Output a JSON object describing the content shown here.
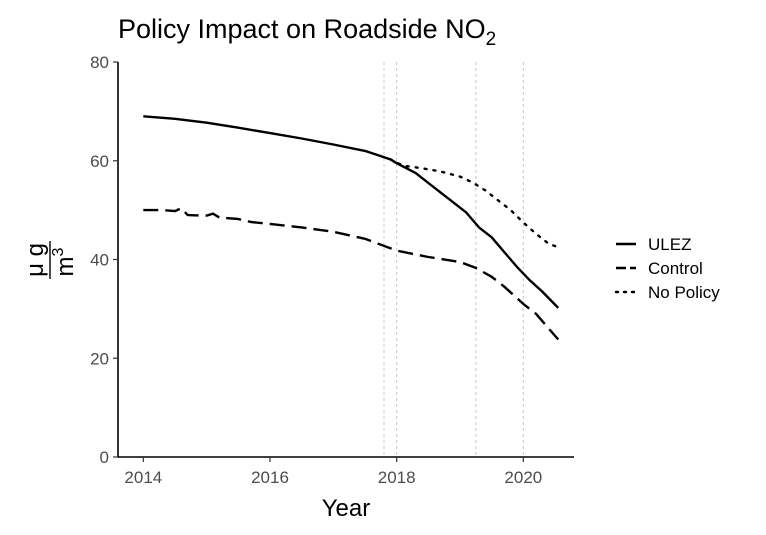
{
  "chart_data": {
    "type": "line",
    "title": "Policy Impact on Roadside NO",
    "title_subscript": "2",
    "xlabel": "Year",
    "ylabel": {
      "numerator": "μ g",
      "denominator": "m",
      "superscript": "3"
    },
    "xlim": [
      2013.6,
      2020.8
    ],
    "ylim": [
      0,
      80
    ],
    "xticks": [
      2014,
      2016,
      2018,
      2020
    ],
    "yticks": [
      0,
      20,
      40,
      60,
      80
    ],
    "grid": false,
    "legend_position": "right",
    "vlines": [
      2017.8,
      2018.0,
      2019.25,
      2020.0
    ],
    "series": [
      {
        "name": "ULEZ",
        "dash": "solid",
        "x": [
          2014.0,
          2014.5,
          2015.0,
          2015.5,
          2016.0,
          2016.5,
          2017.0,
          2017.5,
          2017.9,
          2018.0,
          2018.3,
          2018.6,
          2018.9,
          2019.1,
          2019.3,
          2019.5,
          2019.7,
          2019.9,
          2020.1,
          2020.3,
          2020.55
        ],
        "y": [
          69.0,
          68.5,
          67.7,
          66.7,
          65.6,
          64.5,
          63.3,
          62.0,
          60.3,
          59.5,
          57.5,
          54.5,
          51.5,
          49.5,
          46.5,
          44.5,
          41.5,
          38.5,
          35.8,
          33.5,
          30.2
        ]
      },
      {
        "name": "Control",
        "dash": "longdash",
        "x": [
          2014.0,
          2014.3,
          2014.5,
          2014.6,
          2014.7,
          2015.0,
          2015.1,
          2015.2,
          2015.5,
          2015.7,
          2016.0,
          2016.5,
          2017.0,
          2017.5,
          2018.0,
          2018.5,
          2019.0,
          2019.25,
          2019.5,
          2019.7,
          2020.0,
          2020.2,
          2020.55
        ],
        "y": [
          50.0,
          50.0,
          49.8,
          50.4,
          49.0,
          48.9,
          49.3,
          48.5,
          48.2,
          47.6,
          47.2,
          46.5,
          45.6,
          44.2,
          41.8,
          40.5,
          39.5,
          38.3,
          36.5,
          34.5,
          31.0,
          29.0,
          23.8
        ]
      },
      {
        "name": "No Policy",
        "dash": "dotted",
        "x": [
          2017.9,
          2018.1,
          2018.4,
          2018.7,
          2019.0,
          2019.2,
          2019.4,
          2019.6,
          2019.8,
          2020.0,
          2020.2,
          2020.4,
          2020.55
        ],
        "y": [
          60.3,
          59.0,
          58.5,
          57.8,
          56.8,
          55.6,
          54.0,
          52.0,
          50.0,
          47.5,
          45.2,
          43.2,
          42.5
        ]
      }
    ]
  }
}
